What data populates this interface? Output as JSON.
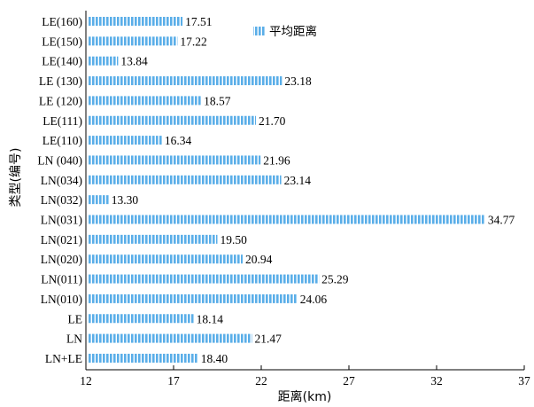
{
  "chart_data": {
    "type": "bar",
    "orientation": "horizontal",
    "categories": [
      "LE(160)",
      "LE(150)",
      "LE(140)",
      "LE (130)",
      "LE (120)",
      "LE(111)",
      "LE(110)",
      "LN (040)",
      "LN(034)",
      "LN(032)",
      "LN(031)",
      "LN(021)",
      "LN(020)",
      "LN(011)",
      "LN(010)",
      "LE",
      "LN",
      "LN+LE"
    ],
    "series": [
      {
        "name": "平均距离",
        "values": [
          17.51,
          17.22,
          13.84,
          23.18,
          18.57,
          21.7,
          16.34,
          21.96,
          23.14,
          13.3,
          34.77,
          19.5,
          20.94,
          25.29,
          24.06,
          18.14,
          21.47,
          18.4
        ]
      }
    ],
    "value_labels": [
      "17.51",
      "17.22",
      "13.84",
      "23.18",
      "18.57",
      "21.70",
      "16.34",
      "21.96",
      "23.14",
      "13.30",
      "34.77",
      "19.50",
      "20.94",
      "25.29",
      "24.06",
      "18.14",
      "21.47",
      "18.40"
    ],
    "xlabel": "距离(km)",
    "ylabel": "类型(编号)",
    "xlim": [
      12,
      37
    ],
    "xticks": [
      "12",
      "17",
      "22",
      "27",
      "32",
      "37"
    ],
    "grid": false,
    "legend_position": "top-center",
    "bar_color": "#5aaee8"
  }
}
